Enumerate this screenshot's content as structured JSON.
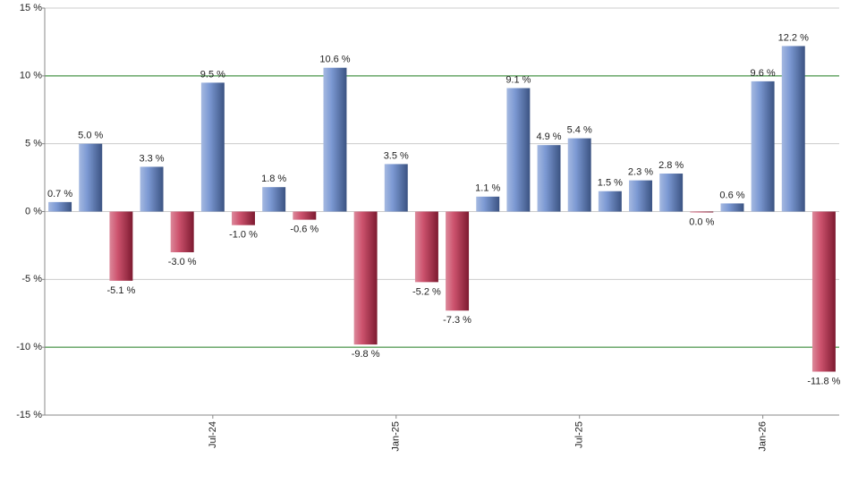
{
  "chart_data": {
    "type": "bar",
    "categories": [
      null,
      null,
      null,
      null,
      null,
      "Jul-24",
      null,
      null,
      null,
      null,
      null,
      "Jan-25",
      null,
      null,
      null,
      null,
      null,
      "Jul-25",
      null,
      null,
      null,
      null,
      null,
      "Jan-26",
      null,
      null
    ],
    "values": [
      0.7,
      5.0,
      -5.1,
      3.3,
      -3.0,
      9.5,
      -1.0,
      1.8,
      -0.6,
      10.6,
      -9.8,
      3.5,
      -5.2,
      -7.3,
      1.1,
      9.1,
      4.9,
      5.4,
      1.5,
      2.3,
      2.8,
      0.0,
      0.6,
      9.6,
      12.2,
      -11.8
    ],
    "value_labels": [
      "0.7 %",
      "5.0 %",
      "-5.1 %",
      "3.3 %",
      "-3.0 %",
      "9.5 %",
      "-1.0 %",
      "1.8 %",
      "-0.6 %",
      "10.6 %",
      "-9.8 %",
      "3.5 %",
      "-5.2 %",
      "-7.3 %",
      "1.1 %",
      "9.1 %",
      "4.9 %",
      "5.4 %",
      "1.5 %",
      "2.3 %",
      "2.8 %",
      "0.0 %",
      "0.6 %",
      "9.6 %",
      "12.2 %",
      "-11.8 %"
    ],
    "colors": [
      "#5b80c8",
      "#5b80c8",
      "#c0284a",
      "#5b80c8",
      "#c0284a",
      "#5b80c8",
      "#c0284a",
      "#5b80c8",
      "#c0284a",
      "#5b80c8",
      "#c0284a",
      "#5b80c8",
      "#c0284a",
      "#c0284a",
      "#5b80c8",
      "#5b80c8",
      "#5b80c8",
      "#5b80c8",
      "#5b80c8",
      "#5b80c8",
      "#5b80c8",
      "#c0284a",
      "#5b80c8",
      "#5b80c8",
      "#5b80c8",
      "#c0284a"
    ],
    "ylim": [
      -15,
      15
    ],
    "yticks": [
      {
        "value": -15,
        "label": "-15 %"
      },
      {
        "value": -10,
        "label": "-10 %"
      },
      {
        "value": -5,
        "label": "-5 %"
      },
      {
        "value": 0,
        "label": "0 %"
      },
      {
        "value": 5,
        "label": "5 %"
      },
      {
        "value": 10,
        "label": "10 %"
      },
      {
        "value": 15,
        "label": "15 %"
      }
    ],
    "grid_colors": [
      "#888888",
      "#1e7a1e",
      "#cccccc",
      "#cccccc",
      "#cccccc",
      "#1e7a1e",
      "#cccccc"
    ],
    "grid": true
  }
}
